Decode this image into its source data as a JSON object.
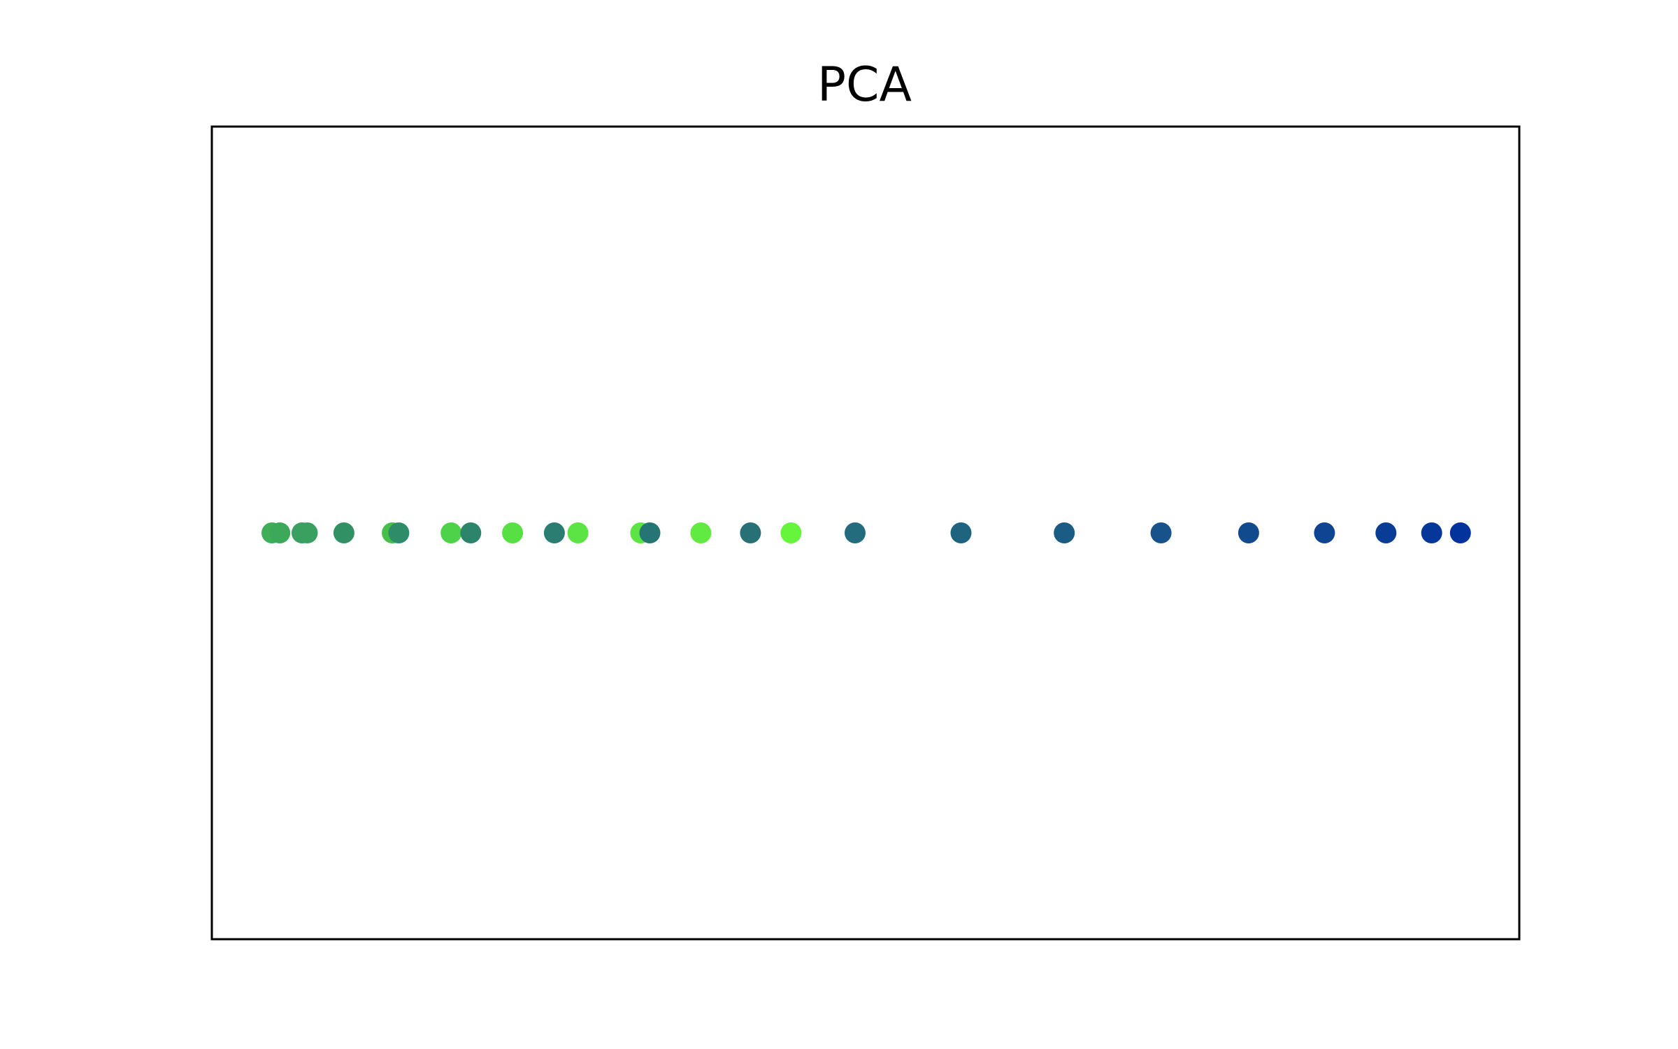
{
  "chart_data": {
    "type": "scatter",
    "title": "PCA",
    "xlabel": "",
    "ylabel": "",
    "axes_ticks": "none",
    "grid": false,
    "legend": "none",
    "xlim": [
      0,
      100
    ],
    "ylim": [
      -1,
      1
    ],
    "points": [
      {
        "x": 4.6,
        "y": 0,
        "color": "#3fae58"
      },
      {
        "x": 5.2,
        "y": 0,
        "color": "#3ba85a"
      },
      {
        "x": 6.9,
        "y": 0,
        "color": "#3a9f62"
      },
      {
        "x": 7.3,
        "y": 0,
        "color": "#3aa060"
      },
      {
        "x": 10.1,
        "y": 0,
        "color": "#329065"
      },
      {
        "x": 13.8,
        "y": 0,
        "color": "#46c04b"
      },
      {
        "x": 14.3,
        "y": 0,
        "color": "#2e8d68"
      },
      {
        "x": 18.3,
        "y": 0,
        "color": "#4ed24a"
      },
      {
        "x": 19.8,
        "y": 0,
        "color": "#2c856b"
      },
      {
        "x": 23.0,
        "y": 0,
        "color": "#57df44"
      },
      {
        "x": 26.2,
        "y": 0,
        "color": "#2a7d70"
      },
      {
        "x": 28.0,
        "y": 0,
        "color": "#5ce444"
      },
      {
        "x": 32.8,
        "y": 0,
        "color": "#5ce444"
      },
      {
        "x": 33.5,
        "y": 0,
        "color": "#267575"
      },
      {
        "x": 37.4,
        "y": 0,
        "color": "#61ea41"
      },
      {
        "x": 41.2,
        "y": 0,
        "color": "#277176"
      },
      {
        "x": 44.3,
        "y": 0,
        "color": "#66f43c"
      },
      {
        "x": 49.2,
        "y": 0,
        "color": "#236c7d"
      },
      {
        "x": 57.3,
        "y": 0,
        "color": "#1f647f"
      },
      {
        "x": 65.2,
        "y": 0,
        "color": "#1b5c85"
      },
      {
        "x": 72.6,
        "y": 0,
        "color": "#17538a"
      },
      {
        "x": 79.3,
        "y": 0,
        "color": "#124a8e"
      },
      {
        "x": 85.1,
        "y": 0,
        "color": "#0e4492"
      },
      {
        "x": 89.8,
        "y": 0,
        "color": "#093d95"
      },
      {
        "x": 93.3,
        "y": 0,
        "color": "#05379a"
      },
      {
        "x": 95.5,
        "y": 0,
        "color": "#02339c"
      }
    ]
  }
}
